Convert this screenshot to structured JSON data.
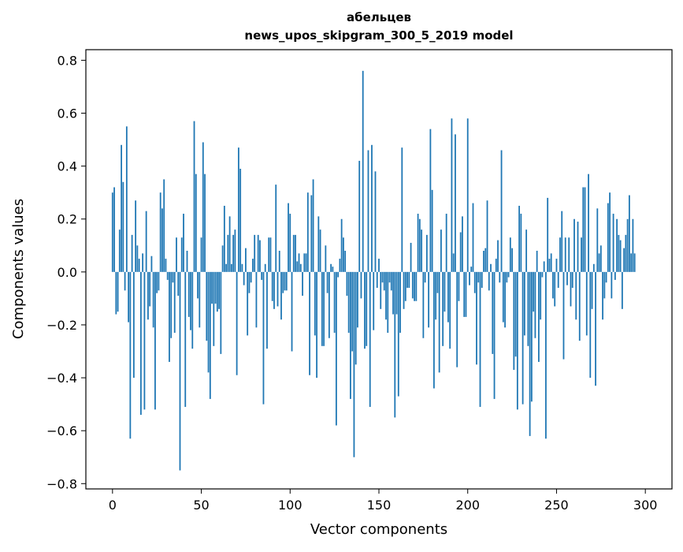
{
  "chart_data": {
    "type": "bar",
    "title_line1": "абельцев",
    "title_line2": "news_upos_skipgram_300_5_2019 model",
    "xlabel": "Vector components",
    "ylabel": "Components values",
    "xlim": [
      -15,
      315
    ],
    "ylim": [
      -0.82,
      0.84
    ],
    "xticks": [
      0,
      50,
      100,
      150,
      200,
      250,
      300
    ],
    "xtick_labels": [
      "0",
      "50",
      "100",
      "150",
      "200",
      "250",
      "300"
    ],
    "yticks": [
      -0.8,
      -0.6,
      -0.4,
      -0.2,
      0.0,
      0.2,
      0.4,
      0.6,
      0.8
    ],
    "ytick_labels": [
      "−0.8",
      "−0.6",
      "−0.4",
      "−0.2",
      "0.0",
      "0.2",
      "0.4",
      "0.6",
      "0.8"
    ],
    "bar_color": "#1f77b4",
    "grid": false,
    "values": [
      0.3,
      0.32,
      -0.16,
      -0.15,
      0.16,
      0.48,
      0.34,
      -0.07,
      0.55,
      -0.19,
      -0.63,
      0.14,
      -0.4,
      0.27,
      0.1,
      0.05,
      -0.54,
      0.07,
      -0.52,
      0.23,
      -0.18,
      -0.13,
      0.06,
      -0.21,
      -0.52,
      -0.08,
      -0.07,
      0.3,
      0.24,
      0.35,
      0.05,
      -0.03,
      -0.34,
      -0.25,
      -0.04,
      -0.23,
      0.13,
      -0.09,
      -0.75,
      0.13,
      0.22,
      -0.51,
      0.08,
      -0.17,
      -0.22,
      -0.29,
      0.57,
      0.37,
      -0.1,
      -0.21,
      0.13,
      0.49,
      0.37,
      -0.26,
      -0.38,
      -0.48,
      -0.12,
      -0.28,
      -0.12,
      -0.15,
      -0.14,
      -0.31,
      0.1,
      0.25,
      0.03,
      0.14,
      0.21,
      0.03,
      0.14,
      0.16,
      -0.39,
      0.47,
      0.39,
      0.03,
      -0.05,
      0.09,
      -0.24,
      -0.08,
      -0.04,
      0.05,
      0.14,
      -0.21,
      0.14,
      0.12,
      -0.03,
      -0.5,
      0.03,
      -0.29,
      0.13,
      0.13,
      -0.11,
      -0.14,
      0.33,
      -0.13,
      0.08,
      -0.18,
      -0.08,
      -0.07,
      -0.07,
      0.26,
      0.22,
      -0.3,
      0.14,
      0.14,
      0.04,
      0.07,
      0.03,
      -0.09,
      0.07,
      0.07,
      0.3,
      -0.39,
      0.29,
      0.35,
      -0.24,
      -0.4,
      0.21,
      0.16,
      -0.28,
      -0.28,
      0.1,
      -0.08,
      -0.25,
      0.03,
      0.02,
      -0.23,
      -0.58,
      -0.02,
      0.05,
      0.2,
      0.13,
      0.08,
      -0.09,
      -0.23,
      -0.48,
      -0.3,
      -0.7,
      -0.35,
      -0.21,
      0.42,
      -0.1,
      0.76,
      -0.29,
      -0.28,
      0.46,
      -0.51,
      0.48,
      -0.22,
      0.38,
      -0.06,
      0.05,
      -0.14,
      -0.04,
      -0.07,
      -0.18,
      -0.23,
      -0.04,
      -0.07,
      -0.16,
      -0.55,
      -0.16,
      -0.47,
      -0.23,
      0.47,
      -0.14,
      -0.11,
      -0.06,
      -0.06,
      0.11,
      -0.1,
      -0.11,
      -0.11,
      0.22,
      0.2,
      0.16,
      -0.25,
      -0.04,
      0.14,
      -0.21,
      0.54,
      0.31,
      -0.44,
      -0.18,
      -0.08,
      -0.38,
      0.16,
      -0.28,
      -0.15,
      0.22,
      -0.19,
      -0.29,
      0.58,
      0.07,
      0.52,
      -0.36,
      -0.11,
      0.15,
      0.21,
      -0.17,
      -0.17,
      0.58,
      -0.05,
      0.02,
      0.26,
      -0.08,
      -0.35,
      -0.04,
      -0.51,
      -0.06,
      0.08,
      0.09,
      0.27,
      -0.07,
      0.03,
      -0.31,
      -0.48,
      0.05,
      0.12,
      -0.04,
      0.46,
      -0.19,
      -0.21,
      -0.04,
      -0.02,
      0.13,
      0.09,
      -0.37,
      -0.32,
      -0.52,
      0.25,
      0.22,
      -0.5,
      -0.24,
      0.16,
      -0.28,
      -0.62,
      -0.49,
      -0.15,
      -0.25,
      0.08,
      -0.34,
      -0.18,
      -0.02,
      0.04,
      -0.63,
      0.28,
      0.05,
      0.07,
      -0.1,
      -0.13,
      0.05,
      -0.06,
      0.13,
      0.23,
      -0.33,
      0.13,
      -0.05,
      0.13,
      -0.13,
      -0.06,
      0.2,
      -0.18,
      0.19,
      -0.26,
      0.13,
      0.32,
      0.32,
      -0.24,
      0.37,
      -0.4,
      -0.14,
      0.03,
      -0.43,
      0.24,
      0.07,
      0.1,
      -0.18,
      -0.1,
      -0.04,
      0.26,
      0.3,
      -0.1,
      0.22,
      -0.03,
      0.2,
      0.14,
      0.12,
      -0.14,
      0.09,
      0.14,
      0.2,
      0.29,
      0.07,
      0.2,
      0.07
    ]
  }
}
